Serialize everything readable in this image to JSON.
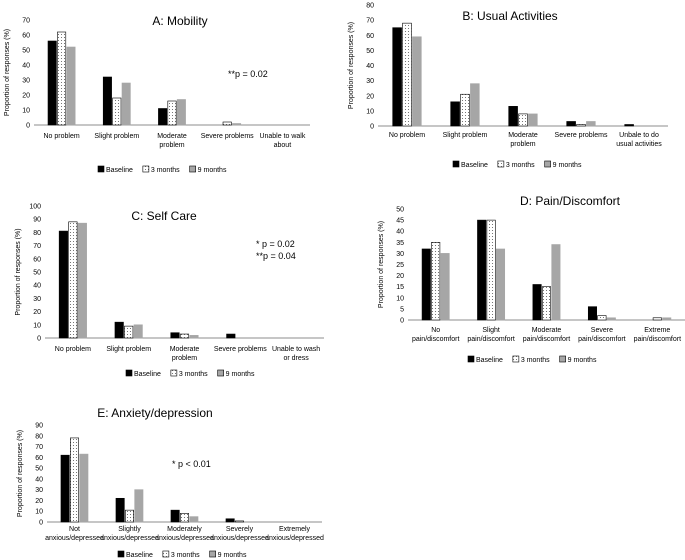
{
  "legend": {
    "series_names": [
      "Baseline",
      "3 months",
      "9 months"
    ]
  },
  "colors": {
    "baseline": "#000000",
    "three_months": "#ffffff",
    "nine_months": "#a6a6a6",
    "axis": "#8c8c8c"
  },
  "chart_data": [
    {
      "id": "mobility",
      "type": "bar",
      "title": "A: Mobility",
      "ylabel": "Proportion of responses (%)",
      "ylim": [
        0,
        70
      ],
      "yticks": [
        0,
        10,
        20,
        30,
        40,
        50,
        60,
        70
      ],
      "categories": [
        [
          "No problem"
        ],
        [
          "Slight problem"
        ],
        [
          "Moderate",
          "problem"
        ],
        [
          "Severe problems"
        ],
        [
          "Unable to walk",
          "about"
        ]
      ],
      "series": [
        {
          "name": "Baseline",
          "values": [
            56,
            32,
            11,
            0,
            0
          ]
        },
        {
          "name": "3 months",
          "values": [
            62,
            18,
            16,
            2,
            0
          ]
        },
        {
          "name": "9 months",
          "values": [
            52,
            28,
            17,
            1,
            0
          ]
        }
      ],
      "annotations": [
        "**p = 0.02"
      ],
      "legend_position": "bottom"
    },
    {
      "id": "usual-activities",
      "type": "bar",
      "title": "B: Usual Activities",
      "ylabel": "Proportion of responses (%)",
      "ylim": [
        0,
        80
      ],
      "yticks": [
        0,
        10,
        20,
        30,
        40,
        50,
        60,
        70,
        80
      ],
      "categories": [
        [
          "No problem"
        ],
        [
          "Slight problem"
        ],
        [
          "Moderate",
          "problem"
        ],
        [
          "Severe problems"
        ],
        [
          "Unbale to do",
          "usual activities"
        ]
      ],
      "series": [
        {
          "name": "Baseline",
          "values": [
            65,
            16,
            13,
            3,
            1
          ]
        },
        {
          "name": "3 months",
          "values": [
            68,
            21,
            8,
            1,
            0
          ]
        },
        {
          "name": "9 months",
          "values": [
            59,
            28,
            8,
            3,
            0
          ]
        }
      ],
      "annotations": [],
      "legend_position": "bottom"
    },
    {
      "id": "self-care",
      "type": "bar",
      "title": "C: Self Care",
      "ylabel": "Proportion of responses (%)",
      "ylim": [
        0,
        100
      ],
      "yticks": [
        0,
        10,
        20,
        30,
        40,
        50,
        60,
        70,
        80,
        90,
        100
      ],
      "categories": [
        [
          "No problem"
        ],
        [
          "Slight problem"
        ],
        [
          "Moderate",
          "problem"
        ],
        [
          "Severe problems"
        ],
        [
          "Unable to wash",
          "or dress"
        ]
      ],
      "series": [
        {
          "name": "Baseline",
          "values": [
            81,
            12,
            4,
            3,
            0
          ]
        },
        {
          "name": "3 months",
          "values": [
            88,
            9,
            3,
            0,
            0
          ]
        },
        {
          "name": "9 months",
          "values": [
            87,
            10,
            2,
            0,
            0
          ]
        }
      ],
      "annotations": [
        "* p = 0.02",
        "**p = 0.04"
      ],
      "legend_position": "bottom"
    },
    {
      "id": "pain-discomfort",
      "type": "bar",
      "title": "D: Pain/Discomfort",
      "ylabel": "Proportion of responses (%)",
      "ylim": [
        0,
        50
      ],
      "yticks": [
        0,
        5,
        10,
        15,
        20,
        25,
        30,
        35,
        40,
        45,
        50
      ],
      "categories": [
        [
          "No",
          "pain/discomfort"
        ],
        [
          "Slight",
          "pain/discomfort"
        ],
        [
          "Moderate",
          "pain/discomfort"
        ],
        [
          "Severe",
          "pain/discomfort"
        ],
        [
          "Extreme",
          "pain/discomfort"
        ]
      ],
      "series": [
        {
          "name": "Baseline",
          "values": [
            32,
            45,
            16,
            6,
            0
          ]
        },
        {
          "name": "3 months",
          "values": [
            35,
            45,
            15,
            2,
            1
          ]
        },
        {
          "name": "9 months",
          "values": [
            30,
            32,
            34,
            1,
            1
          ]
        }
      ],
      "annotations": [],
      "legend_position": "bottom"
    },
    {
      "id": "anxiety-depression",
      "type": "bar",
      "title": "E: Anxiety/depression",
      "ylabel": "Proportion of responses (%)",
      "ylim": [
        0,
        90
      ],
      "yticks": [
        0,
        10,
        20,
        30,
        40,
        50,
        60,
        70,
        80,
        90
      ],
      "categories": [
        [
          "Not",
          "anxious/depressed"
        ],
        [
          "Slightly",
          "anxious/depressed"
        ],
        [
          "Moderately",
          "anxious/depressed"
        ],
        [
          "Severely",
          "anxious/depressed"
        ],
        [
          "Extremely",
          "anxious/depressed"
        ]
      ],
      "series": [
        {
          "name": "Baseline",
          "values": [
            62,
            22,
            11,
            3,
            0
          ]
        },
        {
          "name": "3 months",
          "values": [
            78,
            11,
            8,
            1,
            0
          ]
        },
        {
          "name": "9 months",
          "values": [
            63,
            30,
            5,
            0,
            0
          ]
        }
      ],
      "annotations": [
        "* p < 0.01"
      ],
      "legend_position": "bottom"
    }
  ]
}
